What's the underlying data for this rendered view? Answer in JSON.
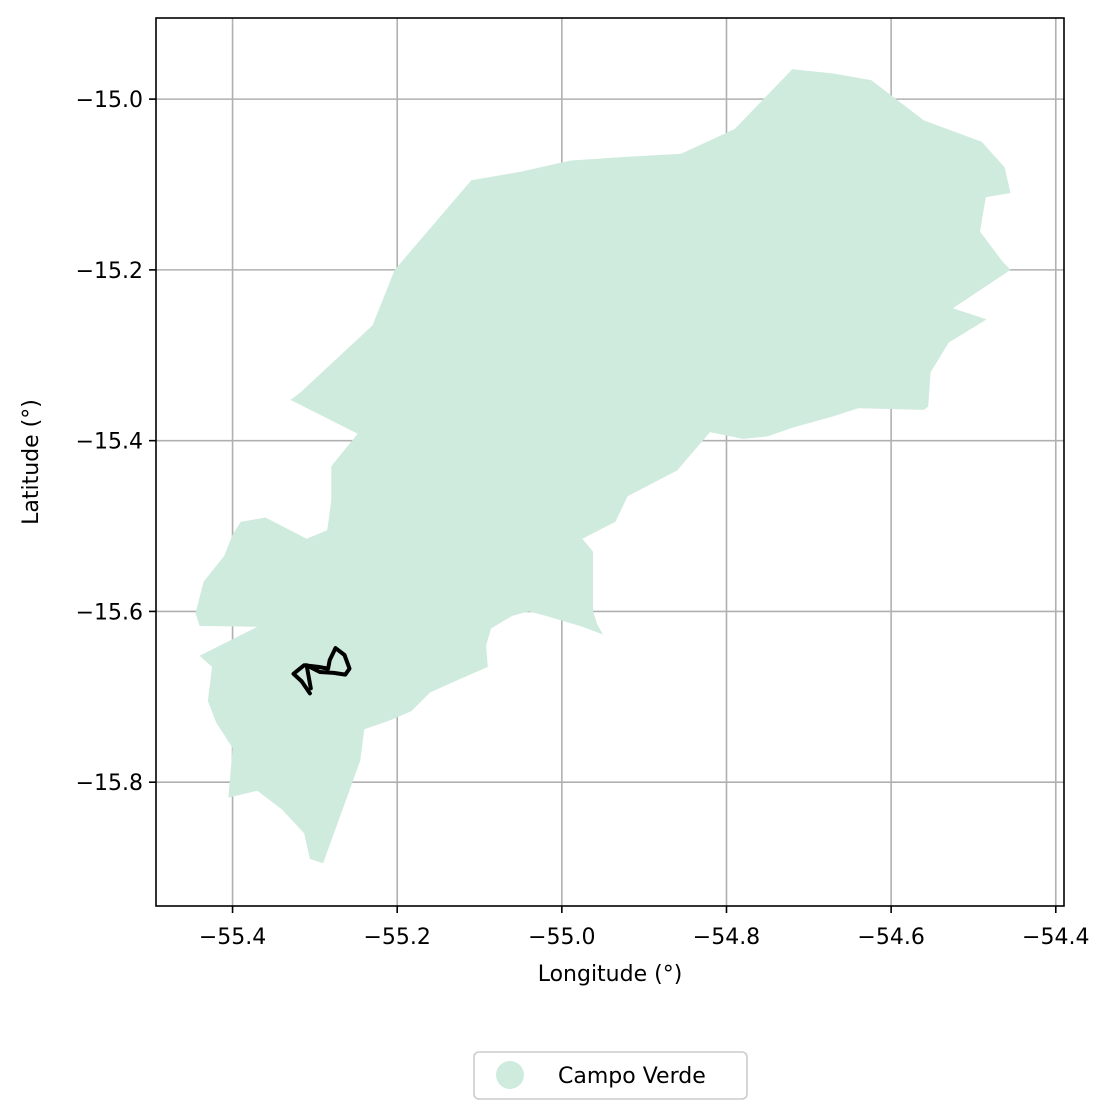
{
  "chart_data": {
    "type": "map",
    "title": "",
    "xlabel": "Longitude (°)",
    "ylabel": "Latitude (°)",
    "xlim": [
      -55.493,
      -54.39
    ],
    "ylim": [
      -15.945,
      -14.905
    ],
    "grid": true,
    "x_ticks": [
      {
        "value": -55.4,
        "label": "−55.4"
      },
      {
        "value": -55.2,
        "label": "−55.2"
      },
      {
        "value": -55.0,
        "label": "−55.0"
      },
      {
        "value": -54.8,
        "label": "−54.8"
      },
      {
        "value": -54.6,
        "label": "−54.6"
      },
      {
        "value": -54.4,
        "label": "−54.4"
      }
    ],
    "y_ticks": [
      {
        "value": -15.0,
        "label": "−15.0"
      },
      {
        "value": -15.2,
        "label": "−15.2"
      },
      {
        "value": -15.4,
        "label": "−15.4"
      },
      {
        "value": -15.6,
        "label": "−15.6"
      },
      {
        "value": -15.8,
        "label": "−15.8"
      }
    ],
    "legend": {
      "placement": "bottom-center",
      "entries": [
        {
          "label": "Campo Verde",
          "color": "#cfebdd"
        }
      ]
    },
    "region": {
      "name": "Campo Verde",
      "color": "#cfebdd",
      "polygon": [
        [
          -55.332,
          -15.354
        ],
        [
          -55.317,
          -15.343
        ],
        [
          -55.23,
          -15.265
        ],
        [
          -55.203,
          -15.2
        ],
        [
          -55.11,
          -15.095
        ],
        [
          -55.05,
          -15.085
        ],
        [
          -54.99,
          -15.072
        ],
        [
          -54.93,
          -15.068
        ],
        [
          -54.855,
          -15.064
        ],
        [
          -54.79,
          -15.035
        ],
        [
          -54.72,
          -14.965
        ],
        [
          -54.67,
          -14.97
        ],
        [
          -54.624,
          -14.978
        ],
        [
          -54.56,
          -15.025
        ],
        [
          -54.49,
          -15.05
        ],
        [
          -54.462,
          -15.08
        ],
        [
          -54.455,
          -15.11
        ],
        [
          -54.485,
          -15.115
        ],
        [
          -54.492,
          -15.155
        ],
        [
          -54.465,
          -15.19
        ],
        [
          -54.455,
          -15.2
        ],
        [
          -54.525,
          -15.245
        ],
        [
          -54.484,
          -15.258
        ],
        [
          -54.53,
          -15.285
        ],
        [
          -54.552,
          -15.32
        ],
        [
          -54.555,
          -15.36
        ],
        [
          -54.56,
          -15.364
        ],
        [
          -54.64,
          -15.362
        ],
        [
          -54.672,
          -15.372
        ],
        [
          -54.72,
          -15.385
        ],
        [
          -54.75,
          -15.395
        ],
        [
          -54.78,
          -15.398
        ],
        [
          -54.82,
          -15.39
        ],
        [
          -54.86,
          -15.435
        ],
        [
          -54.92,
          -15.465
        ],
        [
          -54.935,
          -15.495
        ],
        [
          -54.975,
          -15.515
        ],
        [
          -54.962,
          -15.53
        ],
        [
          -54.962,
          -15.6
        ],
        [
          -54.957,
          -15.615
        ],
        [
          -54.95,
          -15.627
        ],
        [
          -54.975,
          -15.618
        ],
        [
          -55.02,
          -15.605
        ],
        [
          -55.04,
          -15.6
        ],
        [
          -55.06,
          -15.605
        ],
        [
          -55.086,
          -15.62
        ],
        [
          -55.092,
          -15.64
        ],
        [
          -55.09,
          -15.665
        ],
        [
          -55.13,
          -15.682
        ],
        [
          -55.16,
          -15.695
        ],
        [
          -55.183,
          -15.717
        ],
        [
          -55.21,
          -15.728
        ],
        [
          -55.24,
          -15.738
        ],
        [
          -55.245,
          -15.775
        ],
        [
          -55.29,
          -15.895
        ],
        [
          -55.306,
          -15.89
        ],
        [
          -55.313,
          -15.86
        ],
        [
          -55.34,
          -15.832
        ],
        [
          -55.37,
          -15.81
        ],
        [
          -55.405,
          -15.818
        ],
        [
          -55.4,
          -15.76
        ],
        [
          -55.42,
          -15.73
        ],
        [
          -55.43,
          -15.705
        ],
        [
          -55.425,
          -15.665
        ],
        [
          -55.44,
          -15.652
        ],
        [
          -55.37,
          -15.618
        ],
        [
          -55.44,
          -15.617
        ],
        [
          -55.445,
          -15.602
        ],
        [
          -55.435,
          -15.565
        ],
        [
          -55.41,
          -15.535
        ],
        [
          -55.4,
          -15.51
        ],
        [
          -55.39,
          -15.495
        ],
        [
          -55.36,
          -15.49
        ],
        [
          -55.31,
          -15.515
        ],
        [
          -55.285,
          -15.505
        ],
        [
          -55.28,
          -15.47
        ],
        [
          -55.28,
          -15.43
        ],
        [
          -55.265,
          -15.412
        ],
        [
          -55.248,
          -15.392
        ],
        [
          -55.33,
          -15.352
        ]
      ]
    },
    "route": {
      "color": "#000000",
      "points": [
        [
          -55.306,
          -15.696
        ],
        [
          -55.316,
          -15.682
        ],
        [
          -55.326,
          -15.673
        ],
        [
          -55.313,
          -15.663
        ],
        [
          -55.296,
          -15.665
        ],
        [
          -55.284,
          -15.667
        ],
        [
          -55.282,
          -15.657
        ],
        [
          -55.275,
          -15.643
        ],
        [
          -55.264,
          -15.651
        ],
        [
          -55.258,
          -15.667
        ],
        [
          -55.263,
          -15.674
        ],
        [
          -55.277,
          -15.672
        ],
        [
          -55.294,
          -15.671
        ],
        [
          -55.31,
          -15.663
        ],
        [
          -55.305,
          -15.69
        ]
      ]
    }
  }
}
